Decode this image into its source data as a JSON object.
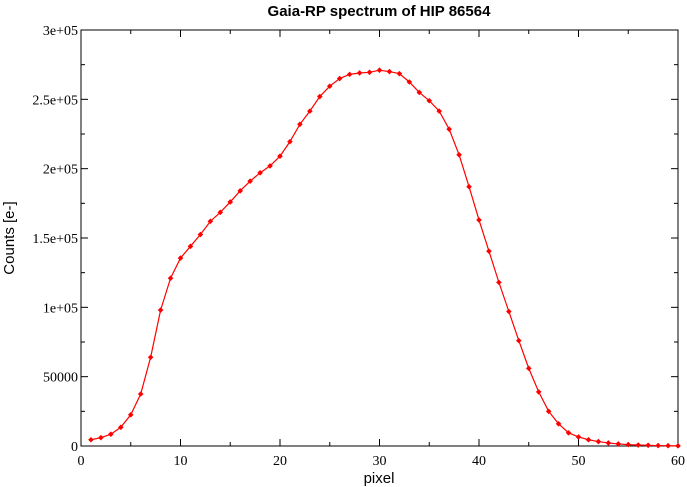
{
  "chart_data": {
    "type": "line",
    "title": "Gaia-RP spectrum of HIP 86564",
    "xlabel": "pixel",
    "ylabel": "Counts [e-]",
    "xlim": [
      0,
      60
    ],
    "ylim": [
      0,
      300000
    ],
    "xticks": [
      0,
      10,
      20,
      30,
      40,
      50,
      60
    ],
    "xtick_labels": [
      "0",
      "10",
      "20",
      "30",
      "40",
      "50",
      "60"
    ],
    "yticks": [
      0,
      50000,
      100000,
      150000,
      200000,
      250000,
      300000
    ],
    "ytick_labels": [
      "0",
      "50000",
      "1e+05",
      "1.5e+05",
      "2e+05",
      "2.5e+05",
      "3e+05"
    ],
    "grid": false,
    "color": "#ff0000",
    "marker": "diamond",
    "series": [
      {
        "x": [
          1,
          2,
          3,
          4,
          5,
          6,
          7,
          8,
          9,
          10,
          11,
          12,
          13,
          14,
          15,
          16,
          17,
          18,
          19,
          20,
          21,
          22,
          23,
          24,
          25,
          26,
          27,
          28,
          29,
          30,
          31,
          32,
          33,
          34,
          35,
          36,
          37,
          38,
          39,
          40,
          41,
          42,
          43,
          44,
          45,
          46,
          47,
          48,
          49,
          50,
          51,
          52,
          53,
          54,
          55,
          56,
          57,
          58,
          59,
          60
        ],
        "values": [
          4500,
          6000,
          8500,
          13500,
          22500,
          37500,
          64000,
          98000,
          121000,
          135500,
          144000,
          152500,
          162000,
          168500,
          176000,
          184000,
          191000,
          197000,
          202000,
          209000,
          219500,
          232000,
          241500,
          252000,
          259500,
          265000,
          268000,
          269000,
          269500,
          271000,
          270000,
          268500,
          262500,
          255000,
          249000,
          241500,
          228500,
          210000,
          187000,
          163000,
          140500,
          118000,
          97000,
          76000,
          56000,
          39000,
          25000,
          16000,
          9500,
          6500,
          4500,
          3200,
          2200,
          1500,
          1000,
          700,
          500,
          300,
          200,
          100
        ]
      }
    ]
  }
}
